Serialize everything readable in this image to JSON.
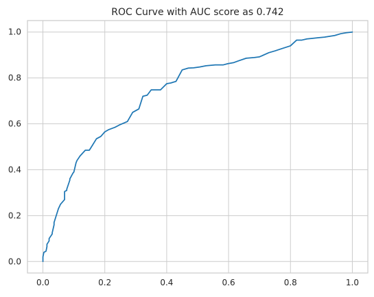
{
  "chart_data": {
    "type": "line",
    "title": "ROC Curve with AUC score as 0.742",
    "xlabel": "",
    "ylabel": "",
    "xlim": [
      -0.05,
      1.05
    ],
    "ylim": [
      -0.05,
      1.05
    ],
    "grid": true,
    "line_color": "#1f77b4",
    "x_ticks": [
      0.0,
      0.2,
      0.4,
      0.6,
      0.8,
      1.0
    ],
    "x_tick_labels": [
      "0.0",
      "0.2",
      "0.4",
      "0.6",
      "0.8",
      "1.0"
    ],
    "y_ticks": [
      0.0,
      0.2,
      0.4,
      0.6,
      0.8,
      1.0
    ],
    "y_tick_labels": [
      "0.0",
      "0.2",
      "0.4",
      "0.6",
      "0.8",
      "1.0"
    ],
    "x": [
      0.0,
      0.0,
      0.003,
      0.01,
      0.013,
      0.013,
      0.02,
      0.02,
      0.03,
      0.03,
      0.036,
      0.036,
      0.05,
      0.057,
      0.07,
      0.07,
      0.077,
      0.077,
      0.087,
      0.087,
      0.097,
      0.1,
      0.107,
      0.11,
      0.12,
      0.137,
      0.15,
      0.157,
      0.173,
      0.187,
      0.2,
      0.213,
      0.233,
      0.247,
      0.273,
      0.29,
      0.31,
      0.323,
      0.337,
      0.35,
      0.36,
      0.38,
      0.4,
      0.413,
      0.43,
      0.45,
      0.47,
      0.487,
      0.507,
      0.527,
      0.557,
      0.583,
      0.597,
      0.617,
      0.633,
      0.657,
      0.683,
      0.7,
      0.73,
      0.75,
      0.77,
      0.8,
      0.82,
      0.837,
      0.853,
      0.867,
      0.887,
      0.91,
      0.943,
      0.963,
      0.98,
      1.0
    ],
    "y": [
      0.0,
      0.02,
      0.04,
      0.045,
      0.065,
      0.075,
      0.09,
      0.1,
      0.12,
      0.125,
      0.16,
      0.17,
      0.23,
      0.25,
      0.27,
      0.305,
      0.31,
      0.315,
      0.355,
      0.36,
      0.385,
      0.39,
      0.43,
      0.44,
      0.46,
      0.485,
      0.485,
      0.5,
      0.535,
      0.545,
      0.565,
      0.575,
      0.585,
      0.595,
      0.61,
      0.65,
      0.665,
      0.72,
      0.725,
      0.748,
      0.748,
      0.748,
      0.775,
      0.778,
      0.785,
      0.835,
      0.843,
      0.844,
      0.848,
      0.853,
      0.857,
      0.857,
      0.862,
      0.867,
      0.875,
      0.886,
      0.889,
      0.892,
      0.91,
      0.918,
      0.927,
      0.94,
      0.965,
      0.965,
      0.97,
      0.972,
      0.975,
      0.978,
      0.985,
      0.993,
      0.997,
      1.0
    ]
  }
}
